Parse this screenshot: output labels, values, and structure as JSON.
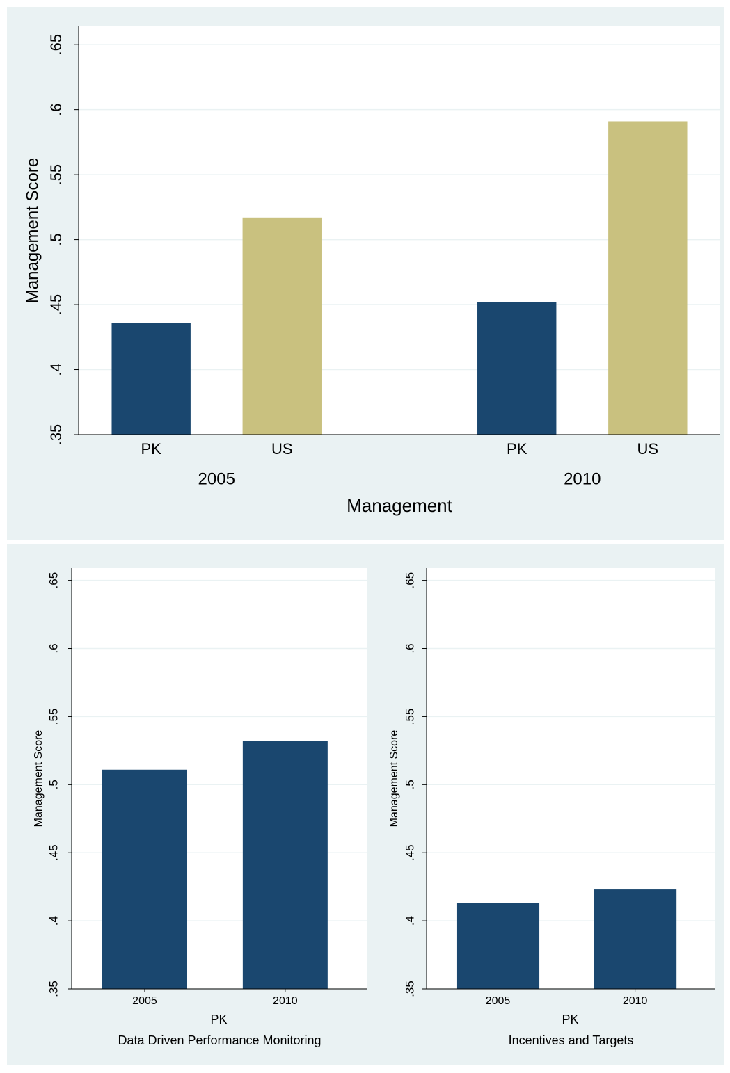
{
  "chart_data": [
    {
      "type": "bar",
      "y_label": "Management Score",
      "x_label": "Management",
      "categories": [
        "2005",
        "2010"
      ],
      "series": [
        {
          "name": "PK",
          "color": "#1a476f",
          "values": [
            0.436,
            0.452
          ]
        },
        {
          "name": "US",
          "color": "#c9c17f",
          "values": [
            0.517,
            0.591
          ]
        }
      ],
      "ylim": [
        0.35,
        0.664
      ],
      "yticks": [
        {
          "value": 0.35,
          "label": ".35"
        },
        {
          "value": 0.4,
          "label": ".4"
        },
        {
          "value": 0.45,
          "label": ".45"
        },
        {
          "value": 0.5,
          "label": ".5"
        },
        {
          "value": 0.55,
          "label": ".55"
        },
        {
          "value": 0.6,
          "label": ".6"
        },
        {
          "value": 0.65,
          "label": ".65"
        }
      ],
      "grid": true
    },
    {
      "type": "bar",
      "y_label": "Management Score",
      "x_label": "PK",
      "caption": "Data Driven Performance Monitoring",
      "categories": [
        "2005",
        "2010"
      ],
      "values": [
        0.511,
        0.532
      ],
      "color": "#1a476f",
      "ylim": [
        0.35,
        0.659
      ],
      "yticks": [
        {
          "value": 0.35,
          "label": ".35"
        },
        {
          "value": 0.4,
          "label": ".4"
        },
        {
          "value": 0.45,
          "label": ".45"
        },
        {
          "value": 0.5,
          "label": ".5"
        },
        {
          "value": 0.55,
          "label": ".55"
        },
        {
          "value": 0.6,
          "label": ".6"
        },
        {
          "value": 0.65,
          "label": ".65"
        }
      ],
      "grid": true
    },
    {
      "type": "bar",
      "y_label": "Management Score",
      "x_label": "PK",
      "caption": "Incentives and Targets",
      "categories": [
        "2005",
        "2010"
      ],
      "values": [
        0.413,
        0.423
      ],
      "color": "#1a476f",
      "ylim": [
        0.35,
        0.659
      ],
      "yticks": [
        {
          "value": 0.35,
          "label": ".35"
        },
        {
          "value": 0.4,
          "label": ".4"
        },
        {
          "value": 0.45,
          "label": ".45"
        },
        {
          "value": 0.5,
          "label": ".5"
        },
        {
          "value": 0.55,
          "label": ".55"
        },
        {
          "value": 0.6,
          "label": ".6"
        },
        {
          "value": 0.65,
          "label": ".65"
        }
      ],
      "grid": true
    }
  ]
}
